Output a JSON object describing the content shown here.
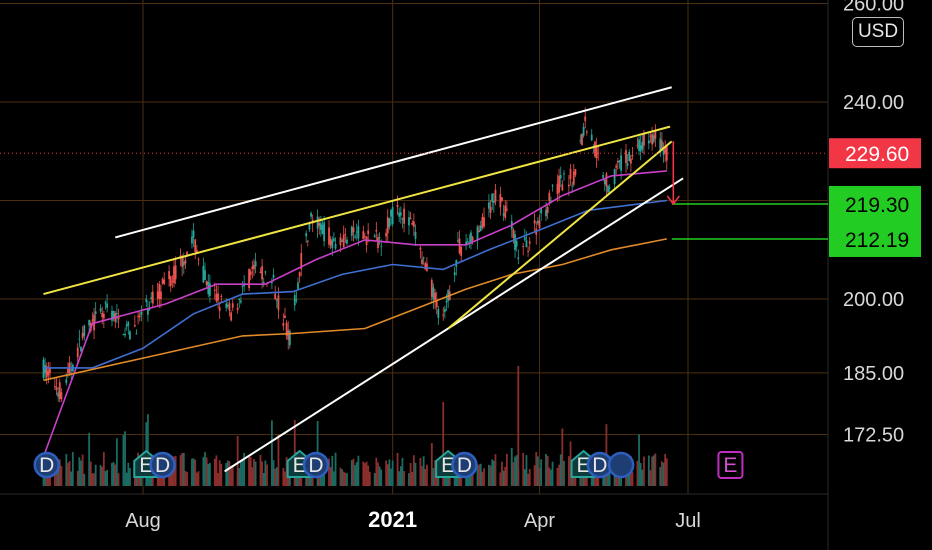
{
  "currency": "USD",
  "colors": {
    "background": "#000000",
    "grid": "#4a2f10",
    "up_candle": "#26a69a",
    "down_candle": "#ef5350",
    "ma_short": "#c940c9",
    "ma_mid": "#3f6fd0",
    "ma_long": "#e08a2a",
    "trendline_white": "#ffffff",
    "trendline_yellow": "#f0e442",
    "target_green": "#22cc22",
    "price_red": "#f23645",
    "earnings_ring": "#2e5fbf",
    "earnings_fill": "#1e3d73",
    "earnings_e_border": "#c02ec0"
  },
  "chart_data": {
    "type": "candlestick",
    "symbol_currency": "USD",
    "x_range": [
      "2020-06-01",
      "2021-07-20"
    ],
    "x_ticks": [
      {
        "date": "2020-08-01",
        "label": "Aug"
      },
      {
        "date": "2021-01-01",
        "label": "2021"
      },
      {
        "date": "2021-04-01",
        "label": "Apr"
      },
      {
        "date": "2021-07-01",
        "label": "Jul"
      }
    ],
    "y_range": [
      165,
      260
    ],
    "y_ticks": [
      172.5,
      185,
      200,
      240,
      260
    ],
    "y_tick_labels": [
      "172.50",
      "185.00",
      "200.00",
      "240.00",
      "260.00"
    ],
    "current_price": 229.6,
    "current_price_label": "229.60",
    "target_levels": [
      {
        "value": 219.3,
        "label": "219.30"
      },
      {
        "value": 212.19,
        "label": "212.19"
      }
    ],
    "price_path": [
      [
        "2020-06-01",
        186
      ],
      [
        "2020-06-12",
        181
      ],
      [
        "2020-06-26",
        193
      ],
      [
        "2020-07-10",
        198
      ],
      [
        "2020-07-24",
        193
      ],
      [
        "2020-08-07",
        200
      ],
      [
        "2020-08-20",
        205
      ],
      [
        "2020-09-01",
        212
      ],
      [
        "2020-09-10",
        202
      ],
      [
        "2020-09-24",
        197
      ],
      [
        "2020-10-08",
        206
      ],
      [
        "2020-10-20",
        203
      ],
      [
        "2020-10-30",
        192
      ],
      [
        "2020-11-06",
        208
      ],
      [
        "2020-11-12",
        216
      ],
      [
        "2020-11-26",
        212
      ],
      [
        "2020-12-10",
        213
      ],
      [
        "2020-12-24",
        212
      ],
      [
        "2021-01-04",
        219
      ],
      [
        "2021-01-14",
        214
      ],
      [
        "2021-01-25",
        202
      ],
      [
        "2021-02-01",
        195
      ],
      [
        "2021-02-10",
        210
      ],
      [
        "2021-02-24",
        214
      ],
      [
        "2021-03-05",
        221
      ],
      [
        "2021-03-12",
        218
      ],
      [
        "2021-03-19",
        209
      ],
      [
        "2021-03-26",
        212
      ],
      [
        "2021-04-02",
        217
      ],
      [
        "2021-04-12",
        223
      ],
      [
        "2021-04-22",
        225
      ],
      [
        "2021-04-29",
        236
      ],
      [
        "2021-05-06",
        230
      ],
      [
        "2021-05-13",
        223
      ],
      [
        "2021-05-20",
        227
      ],
      [
        "2021-06-01",
        231
      ],
      [
        "2021-06-10",
        233
      ],
      [
        "2021-06-18",
        229.6
      ]
    ],
    "indicators": [
      {
        "type": "ma_short",
        "points": [
          [
            "2020-06-01",
            168
          ],
          [
            "2020-07-01",
            195
          ],
          [
            "2020-08-15",
            199
          ],
          [
            "2020-09-15",
            203
          ],
          [
            "2020-10-15",
            203
          ],
          [
            "2020-11-15",
            208
          ],
          [
            "2020-12-15",
            212
          ],
          [
            "2021-01-15",
            211
          ],
          [
            "2021-02-15",
            211
          ],
          [
            "2021-03-15",
            215
          ],
          [
            "2021-04-15",
            221
          ],
          [
            "2021-05-15",
            225
          ],
          [
            "2021-06-18",
            226
          ]
        ]
      },
      {
        "type": "ma_mid",
        "points": [
          [
            "2020-06-01",
            186
          ],
          [
            "2020-07-01",
            186
          ],
          [
            "2020-08-01",
            190
          ],
          [
            "2020-09-01",
            197
          ],
          [
            "2020-10-01",
            201
          ],
          [
            "2020-11-01",
            201.5
          ],
          [
            "2020-12-01",
            205
          ],
          [
            "2021-01-01",
            207
          ],
          [
            "2021-02-01",
            206
          ],
          [
            "2021-03-01",
            210
          ],
          [
            "2021-04-01",
            214
          ],
          [
            "2021-05-01",
            218
          ],
          [
            "2021-06-18",
            220
          ]
        ]
      },
      {
        "type": "ma_long",
        "points": [
          [
            "2020-06-01",
            183.5
          ],
          [
            "2020-08-01",
            188
          ],
          [
            "2020-10-01",
            192.5
          ],
          [
            "2020-11-01",
            193
          ],
          [
            "2020-12-15",
            194
          ],
          [
            "2021-01-15",
            198
          ],
          [
            "2021-02-15",
            202
          ],
          [
            "2021-03-15",
            205
          ],
          [
            "2021-04-15",
            207
          ],
          [
            "2021-05-15",
            210
          ],
          [
            "2021-06-18",
            212.2
          ]
        ]
      }
    ],
    "trendlines": [
      {
        "color": "white",
        "points": [
          [
            "2020-07-15",
            212.5
          ],
          [
            "2021-06-21",
            243
          ]
        ]
      },
      {
        "color": "white",
        "points": [
          [
            "2020-09-20",
            165
          ],
          [
            "2021-06-28",
            224.5
          ]
        ]
      },
      {
        "color": "yellow",
        "points": [
          [
            "2020-06-01",
            201
          ],
          [
            "2021-06-20",
            235
          ]
        ]
      },
      {
        "color": "yellow",
        "points": [
          [
            "2021-02-04",
            194
          ],
          [
            "2021-06-21",
            232
          ]
        ]
      }
    ],
    "earnings_markers": [
      {
        "date": "2020-06-03",
        "label": "D"
      },
      {
        "date": "2020-08-03",
        "label": "E"
      },
      {
        "date": "2020-08-13",
        "label": "D"
      },
      {
        "date": "2020-11-05",
        "label": "E"
      },
      {
        "date": "2020-11-15",
        "label": "D"
      },
      {
        "date": "2021-02-04",
        "label": "E"
      },
      {
        "date": "2021-02-14",
        "label": "D"
      },
      {
        "date": "2021-04-28",
        "label": "E"
      },
      {
        "date": "2021-05-08",
        "label": "D"
      },
      {
        "date": "2021-05-21",
        "label": ""
      },
      {
        "date": "2021-07-27",
        "label": "E",
        "upcoming": true
      }
    ],
    "projection_arrow": {
      "date": "2021-06-22",
      "from": 229.6,
      "to": 219.3
    },
    "volume": {
      "baseline_date_range": [
        "2020-06-01",
        "2021-06-18"
      ]
    }
  }
}
